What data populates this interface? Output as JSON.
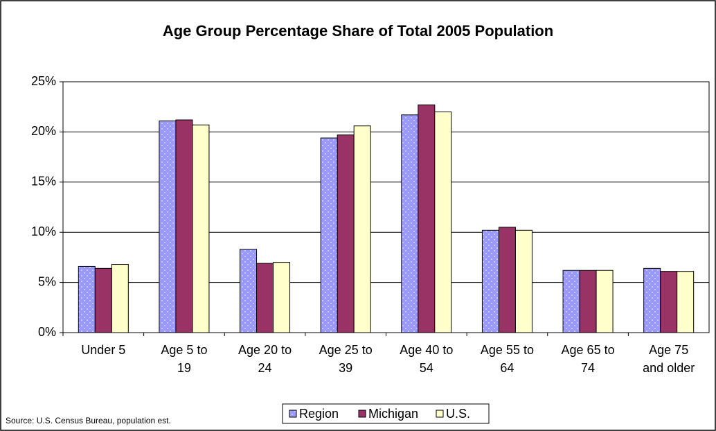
{
  "chart_data": {
    "type": "bar",
    "title": "Age Group Percentage Share of Total 2005 Population",
    "categories": [
      "Under 5",
      "Age 5 to 19",
      "Age 20 to 24",
      "Age 25 to 39",
      "Age 40 to 54",
      "Age 55 to 64",
      "Age 65 to 74",
      "Age 75 and older"
    ],
    "series": [
      {
        "name": "Region",
        "color": "#9999ff",
        "values": [
          6.6,
          21.1,
          8.3,
          19.4,
          21.7,
          10.2,
          6.2,
          6.4
        ]
      },
      {
        "name": "Michigan",
        "color": "#993366",
        "values": [
          6.4,
          21.2,
          6.9,
          19.7,
          22.7,
          10.5,
          6.2,
          6.1
        ]
      },
      {
        "name": "U.S.",
        "color": "#ffffcc",
        "values": [
          6.8,
          20.7,
          7.0,
          20.6,
          22.0,
          10.2,
          6.2,
          6.1
        ]
      }
    ],
    "ylim": [
      0,
      25
    ],
    "yticks": [
      {
        "value": 0,
        "label": "0%"
      },
      {
        "value": 5,
        "label": "5%"
      },
      {
        "value": 10,
        "label": "10%"
      },
      {
        "value": 15,
        "label": "15%"
      },
      {
        "value": 20,
        "label": "20%"
      },
      {
        "value": 25,
        "label": "25%"
      }
    ],
    "grid": true,
    "legend": "bottom",
    "source": "Source: U.S. Census Bureau, population est."
  }
}
